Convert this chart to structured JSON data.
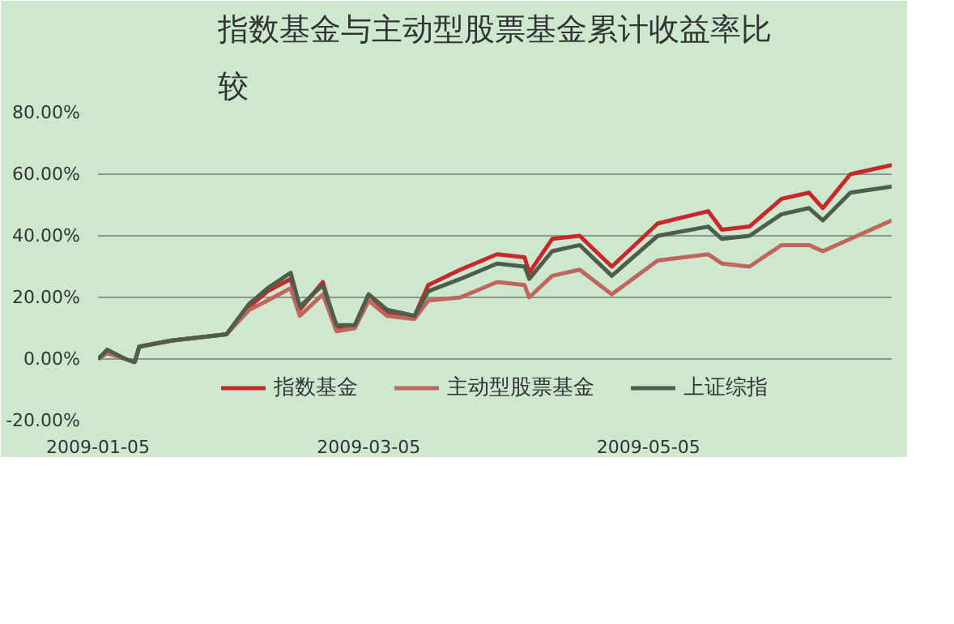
{
  "chart_data": {
    "type": "line",
    "title": "指数基金与主动型股票基金累计收益率比较",
    "x": [
      "2009-01-05",
      "2009-01-07",
      "2009-01-11",
      "2009-01-13",
      "2009-01-14",
      "2009-01-21",
      "2009-02-02",
      "2009-02-07",
      "2009-02-11",
      "2009-02-16",
      "2009-02-18",
      "2009-02-23",
      "2009-02-26",
      "2009-03-02",
      "2009-03-05",
      "2009-03-09",
      "2009-03-15",
      "2009-03-18",
      "2009-03-25",
      "2009-04-02",
      "2009-04-08",
      "2009-04-09",
      "2009-04-14",
      "2009-04-20",
      "2009-04-27",
      "2009-05-07",
      "2009-05-18",
      "2009-05-21",
      "2009-05-27",
      "2009-06-03",
      "2009-06-09",
      "2009-06-12",
      "2009-06-18",
      "2009-06-27"
    ],
    "series": [
      {
        "name": "指数基金",
        "color": "#c8282a",
        "values": [
          0,
          2,
          0,
          -1,
          4,
          6,
          8,
          17,
          22,
          26,
          16,
          25,
          10,
          11,
          21,
          15,
          14,
          24,
          29,
          34,
          33,
          28,
          39,
          40,
          30,
          44,
          48,
          42,
          43,
          52,
          54,
          49,
          60,
          63
        ]
      },
      {
        "name": "主动型股票基金",
        "color": "#c0665e",
        "values": [
          0,
          2,
          0,
          -1,
          4,
          6,
          8,
          16,
          19,
          23,
          14,
          21,
          9,
          10,
          19,
          14,
          13,
          19,
          20,
          25,
          24,
          20,
          27,
          29,
          21,
          32,
          34,
          31,
          30,
          37,
          37,
          35,
          39,
          45
        ]
      },
      {
        "name": "上证综指",
        "color": "#4d5e4b",
        "values": [
          0,
          3,
          0,
          -1,
          4,
          6,
          8,
          18,
          23,
          28,
          17,
          24,
          11,
          11,
          21,
          16,
          14,
          22,
          26,
          31,
          30,
          26,
          35,
          37,
          27,
          40,
          43,
          39,
          40,
          47,
          49,
          45,
          54,
          56
        ]
      }
    ],
    "xlim": [
      "2009-01-05",
      "2009-06-27"
    ],
    "xticks": [
      "2009-01-05",
      "2009-03-05",
      "2009-05-05"
    ],
    "ylim": [
      -20,
      80
    ],
    "yticks": [
      {
        "value": -20,
        "label": "-20.00%"
      },
      {
        "value": 0,
        "label": "0.00%"
      },
      {
        "value": 20,
        "label": "20.00%"
      },
      {
        "value": 40,
        "label": "40.00%"
      },
      {
        "value": 60,
        "label": "60.00%"
      },
      {
        "value": 80,
        "label": "80.00%"
      }
    ],
    "grid": "y",
    "legend": "bottom",
    "marker": "none",
    "line_style": "solid"
  }
}
